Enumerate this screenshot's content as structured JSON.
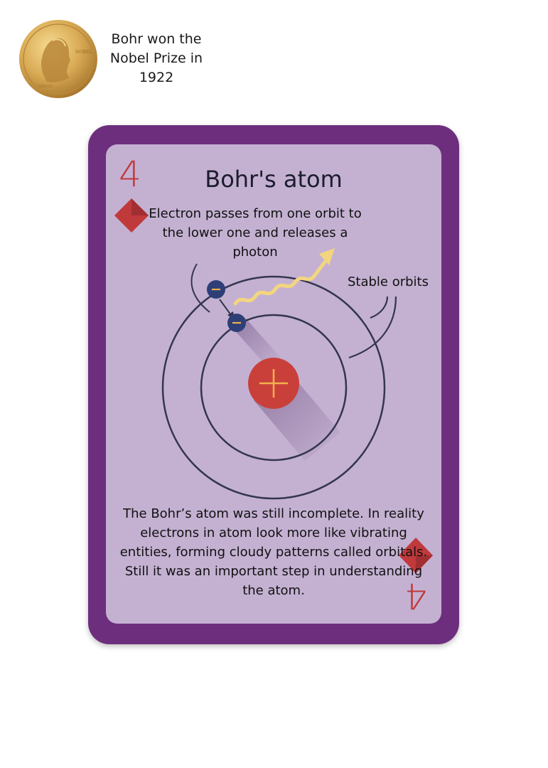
{
  "medal": {
    "caption": "Bohr won the\nNobel Prize in\n1922"
  },
  "card": {
    "rank": "4",
    "suit_icon": "diamond-suit-icon",
    "title": "Bohr's atom",
    "callout_electron": "Electron passes from one orbit to the lower one and releases a photon",
    "callout_orbits": "Stable orbits",
    "description": "The Bohr’s atom was still incomplete. In reality electrons in atom look more like vibrating entities, forming cloudy patterns called orbitals. Still it was an important step in understanding the atom."
  },
  "colors": {
    "card_frame": "#6d2e7d",
    "card_face": "#c4b1d2",
    "suit_red": "#c0393b",
    "nucleus": "#c9403a",
    "electron": "#2e3f78",
    "photon": "#f3d57e",
    "orbit": "#34364e"
  }
}
